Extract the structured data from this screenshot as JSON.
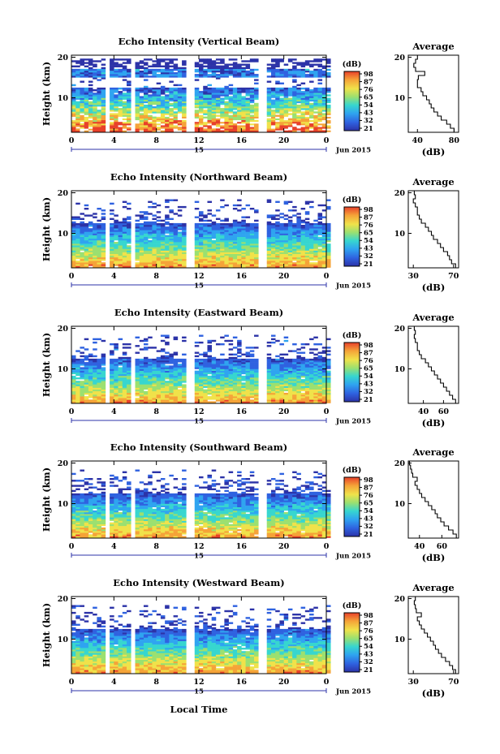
{
  "common": {
    "ylabel": "Height (km)",
    "xlabel": "Local Time",
    "date_label": "Jun 2015",
    "day_label": "15",
    "x_ticks": [
      "0",
      "4",
      "8",
      "12",
      "16",
      "20",
      "0"
    ],
    "y_ticks": [
      "20",
      "10"
    ],
    "colorbar_label": "(dB)",
    "avg_title": "Average",
    "avg_xlabel": "(dB)"
  },
  "chart_data": [
    {
      "type": "heatmap",
      "beam": "vertical",
      "title": "Echo Intensity (Vertical Beam)",
      "xlabel": "Local Time",
      "ylabel": "Height (km)",
      "x_range": [
        0,
        24
      ],
      "y_range": [
        1.5,
        20.5
      ],
      "colorbar_ticks": [
        "98",
        "87",
        "76",
        "65",
        "54",
        "43",
        "32",
        "21"
      ],
      "average_profile": {
        "title": "Average",
        "xlabel": "(dB)",
        "x_ticks": [
          "40",
          "80"
        ],
        "x_range": [
          30,
          85
        ],
        "heights": [
          2,
          3,
          4,
          5,
          6,
          7,
          8,
          9,
          10,
          11,
          12,
          13,
          14,
          15,
          16,
          17,
          18,
          19,
          20
        ],
        "values": [
          80,
          76,
          72,
          66,
          62,
          58,
          55,
          53,
          50,
          46,
          44,
          40,
          40,
          41,
          48,
          38,
          36,
          38,
          40
        ]
      }
    },
    {
      "type": "heatmap",
      "beam": "northward",
      "title": "Echo Intensity (Northward Beam)",
      "xlabel": "Local Time",
      "ylabel": "Height (km)",
      "x_range": [
        0,
        24
      ],
      "y_range": [
        1.5,
        20.5
      ],
      "colorbar_ticks": [
        "98",
        "87",
        "76",
        "65",
        "54",
        "43",
        "32",
        "21"
      ],
      "average_profile": {
        "title": "Average",
        "xlabel": "(dB)",
        "x_ticks": [
          "30",
          "70"
        ],
        "x_range": [
          25,
          75
        ],
        "heights": [
          2,
          3,
          4,
          5,
          6,
          7,
          8,
          9,
          10,
          11,
          12,
          13,
          14,
          15,
          16,
          17,
          18,
          19,
          20
        ],
        "values": [
          72,
          68,
          66,
          64,
          60,
          57,
          54,
          50,
          48,
          45,
          42,
          38,
          36,
          34,
          34,
          32,
          30,
          32,
          31
        ]
      }
    },
    {
      "type": "heatmap",
      "beam": "eastward",
      "title": "Echo Intensity (Eastward Beam)",
      "xlabel": "Local Time",
      "ylabel": "Height (km)",
      "x_range": [
        0,
        24
      ],
      "y_range": [
        1.5,
        20.5
      ],
      "colorbar_ticks": [
        "98",
        "87",
        "76",
        "65",
        "54",
        "43",
        "32",
        "21"
      ],
      "average_profile": {
        "title": "Average",
        "xlabel": "(dB)",
        "x_ticks": [
          "40",
          "60"
        ],
        "x_range": [
          25,
          75
        ],
        "heights": [
          2,
          3,
          4,
          5,
          6,
          7,
          8,
          9,
          10,
          11,
          12,
          13,
          14,
          15,
          16,
          17,
          18,
          19,
          20
        ],
        "values": [
          72,
          69,
          66,
          63,
          60,
          57,
          54,
          51,
          48,
          45,
          42,
          38,
          36,
          34,
          34,
          32,
          31,
          32,
          31
        ]
      }
    },
    {
      "type": "heatmap",
      "beam": "southward",
      "title": "Echo Intensity (Southward Beam)",
      "xlabel": "Local Time",
      "ylabel": "Height (km)",
      "x_range": [
        0,
        24
      ],
      "y_range": [
        1.5,
        20.5
      ],
      "colorbar_ticks": [
        "98",
        "87",
        "76",
        "65",
        "54",
        "43",
        "32",
        "21"
      ],
      "average_profile": {
        "title": "Average",
        "xlabel": "(dB)",
        "x_ticks": [
          "40",
          "60"
        ],
        "x_range": [
          30,
          75
        ],
        "heights": [
          2,
          3,
          4,
          5,
          6,
          7,
          8,
          9,
          10,
          11,
          12,
          13,
          14,
          15,
          16,
          17,
          18,
          19,
          20
        ],
        "values": [
          73,
          70,
          66,
          62,
          59,
          56,
          54,
          51,
          48,
          45,
          42,
          40,
          38,
          36,
          38,
          34,
          33,
          32,
          31
        ]
      }
    },
    {
      "type": "heatmap",
      "beam": "westward",
      "title": "Echo Intensity (Westward Beam)",
      "xlabel": "Local Time",
      "ylabel": "Height (km)",
      "x_range": [
        0,
        24
      ],
      "y_range": [
        1.5,
        20.5
      ],
      "colorbar_ticks": [
        "98",
        "87",
        "76",
        "65",
        "54",
        "43",
        "32",
        "21"
      ],
      "average_profile": {
        "title": "Average",
        "xlabel": "(dB)",
        "x_ticks": [
          "30",
          "70"
        ],
        "x_range": [
          25,
          75
        ],
        "heights": [
          2,
          3,
          4,
          5,
          6,
          7,
          8,
          9,
          10,
          11,
          12,
          13,
          14,
          15,
          16,
          17,
          18,
          19,
          20
        ],
        "values": [
          72,
          69,
          66,
          62,
          58,
          55,
          52,
          50,
          47,
          44,
          41,
          38,
          36,
          34,
          38,
          33,
          32,
          31,
          32
        ]
      }
    }
  ],
  "colors": {
    "colormap": [
      "#2c33a8",
      "#2f62e0",
      "#2fa4f0",
      "#37d6cf",
      "#9be070",
      "#f0e24a",
      "#f5a338",
      "#e8402a"
    ]
  }
}
